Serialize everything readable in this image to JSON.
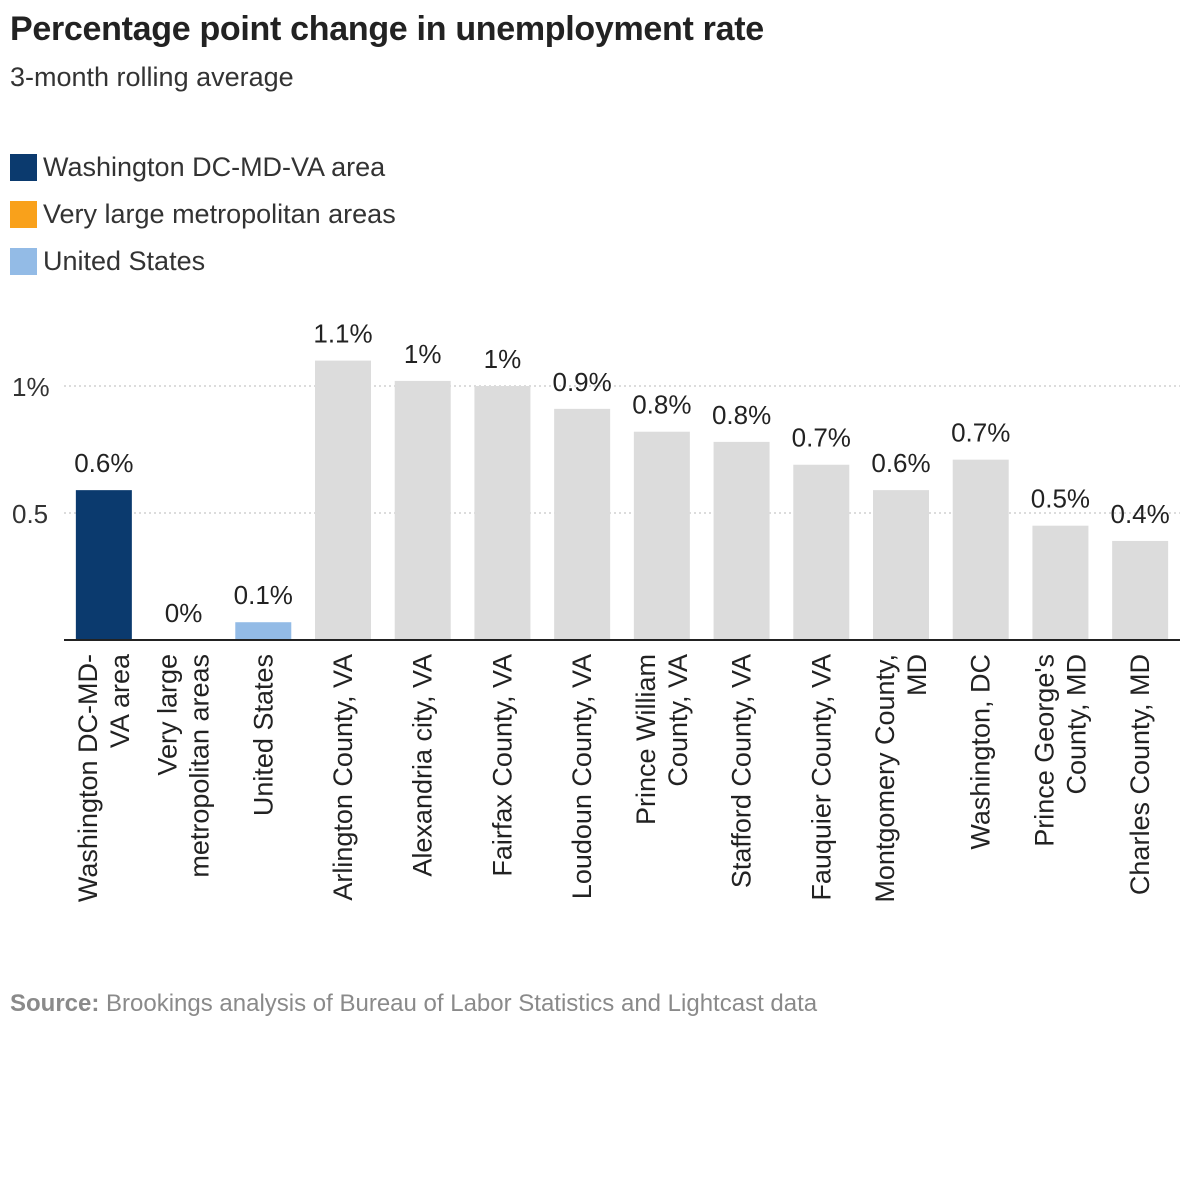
{
  "title": "Percentage point change in unemployment rate",
  "subtitle": "3-month rolling average",
  "legend": [
    {
      "label": "Washington DC-MD-VA area",
      "color": "#0b3a6e"
    },
    {
      "label": "Very large metropolitan areas",
      "color": "#f9a11b"
    },
    {
      "label": "United States",
      "color": "#93bbe6"
    }
  ],
  "source": {
    "prefix": "Source:",
    "text": "Brookings analysis of Bureau of Labor Statistics and Lightcast data"
  },
  "chart_data": {
    "type": "bar",
    "categories": [
      "Washington DC-MD-VA area",
      "Very large metropolitan areas",
      "United States",
      "Arlington County, VA",
      "Alexandria city, VA",
      "Fairfax County, VA",
      "Loudoun County, VA",
      "Prince William County, VA",
      "Stafford County, VA",
      "Fauquier County, VA",
      "Montgomery County, MD",
      "Washington, DC",
      "Prince George's County, MD",
      "Charles County, MD"
    ],
    "category_label_lines": [
      [
        "Washington DC-MD-",
        "VA area"
      ],
      [
        "Very large",
        "metropolitan areas"
      ],
      [
        "United States"
      ],
      [
        "Arlington County, VA"
      ],
      [
        "Alexandria city, VA"
      ],
      [
        "Fairfax County, VA"
      ],
      [
        "Loudoun County, VA"
      ],
      [
        "Prince William",
        "County, VA"
      ],
      [
        "Stafford County, VA"
      ],
      [
        "Fauquier County, VA"
      ],
      [
        "Montgomery County,",
        "MD"
      ],
      [
        "Washington, DC"
      ],
      [
        "Prince George's",
        "County, MD"
      ],
      [
        "Charles County, MD"
      ]
    ],
    "values": [
      0.59,
      0.0,
      0.07,
      1.1,
      1.02,
      1.0,
      0.91,
      0.82,
      0.78,
      0.69,
      0.59,
      0.71,
      0.45,
      0.39
    ],
    "data_labels": [
      "0.6%",
      "0%",
      "0.1%",
      "1.1%",
      "1%",
      "1%",
      "0.9%",
      "0.8%",
      "0.8%",
      "0.7%",
      "0.6%",
      "0.7%",
      "0.5%",
      "0.4%"
    ],
    "colors": [
      "#0b3a6e",
      "#f9a11b",
      "#93bbe6",
      "#dcdcdc",
      "#dcdcdc",
      "#dcdcdc",
      "#dcdcdc",
      "#dcdcdc",
      "#dcdcdc",
      "#dcdcdc",
      "#dcdcdc",
      "#dcdcdc",
      "#dcdcdc",
      "#dcdcdc"
    ],
    "y_ticks": [
      0.5,
      1
    ],
    "y_tick_labels": [
      "0.5",
      "1%"
    ],
    "ylim": [
      0,
      1.2
    ],
    "grid": true,
    "legend_position": "top-left"
  }
}
